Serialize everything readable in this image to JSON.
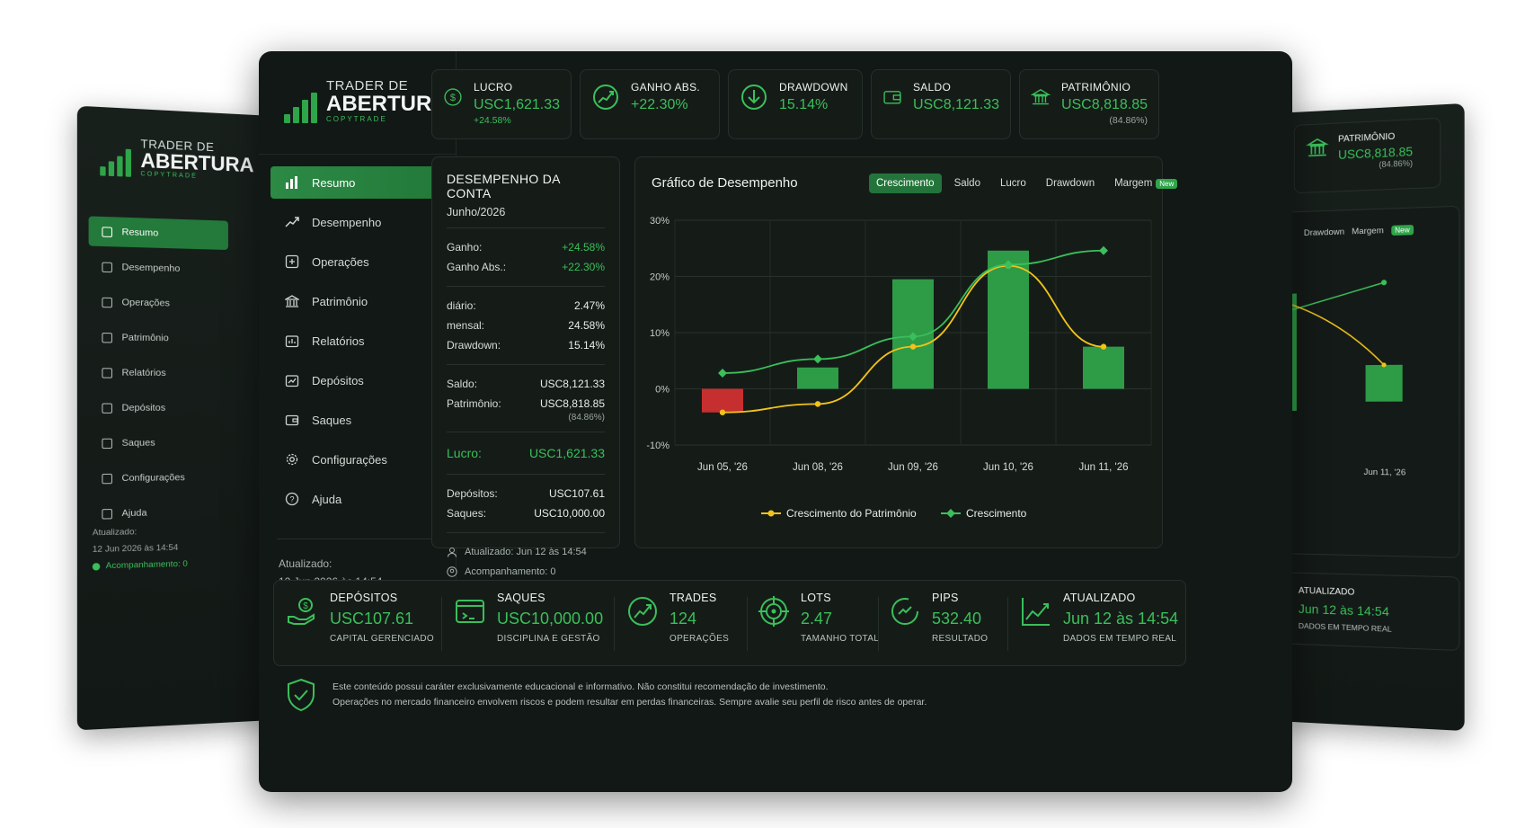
{
  "brand": {
    "line1": "TRADER DE",
    "line2": "ABERTURA",
    "line3": "COPYTRADE"
  },
  "sidebar": {
    "items": [
      {
        "label": "Resumo",
        "icon": "bar-chart-icon",
        "active": true
      },
      {
        "label": "Desempenho",
        "icon": "trend-up-icon"
      },
      {
        "label": "Operações",
        "icon": "operations-icon"
      },
      {
        "label": "Patrimônio",
        "icon": "bank-icon"
      },
      {
        "label": "Relatórios",
        "icon": "report-icon"
      },
      {
        "label": "Depósitos",
        "icon": "deposit-icon"
      },
      {
        "label": "Saques",
        "icon": "wallet-icon"
      },
      {
        "label": "Configurações",
        "icon": "gear-icon"
      },
      {
        "label": "Ajuda",
        "icon": "help-icon"
      }
    ],
    "updated_label": "Atualizado:",
    "updated_value": "12 Jun 2026 às 14:54",
    "follow": "Acompanhamento: 0"
  },
  "stats": [
    {
      "label": "LUCRO",
      "value": "USC1,621.33",
      "sub": "+24.58%",
      "icon": "dollar-icon"
    },
    {
      "label": "GANHO ABS.",
      "value": "+22.30%",
      "sub": "",
      "icon": "gain-chart-icon"
    },
    {
      "label": "DRAWDOWN",
      "value": "15.14%",
      "sub": "",
      "icon": "down-arrow-icon"
    },
    {
      "label": "SALDO",
      "value": "USC8,121.33",
      "sub": "",
      "icon": "wallet-icon"
    },
    {
      "label": "PATRIMÔNIO",
      "value": "USC8,818.85",
      "sub": "(84.86%)",
      "icon": "bank-icon"
    }
  ],
  "account": {
    "title": "DESEMPENHO DA CONTA",
    "period": "Junho/2026",
    "gain_label": "Ganho:",
    "gain": "+24.58%",
    "gain_abs_label": "Ganho Abs.:",
    "gain_abs": "+22.30%",
    "daily_label": "diário:",
    "daily": "2.47%",
    "monthly_label": "mensal:",
    "monthly": "24.58%",
    "drawdown_label": "Drawdown:",
    "drawdown": "15.14%",
    "balance_label": "Saldo:",
    "balance": "USC8,121.33",
    "equity_label": "Patrimônio:",
    "equity": "USC8,818.85",
    "equity_pct": "(84.86%)",
    "profit_label": "Lucro:",
    "profit": "USC1,621.33",
    "deposits_label": "Depósitos:",
    "deposits": "USC107.61",
    "withdrawals_label": "Saques:",
    "withdrawals": "USC10,000.00",
    "updated": "Atualizado: Jun 12 às 14:54",
    "follow": "Acompanhamento: 0"
  },
  "chart_panel": {
    "title": "Gráfico de Desempenho",
    "tabs": [
      "Crescimento",
      "Saldo",
      "Lucro",
      "Drawdown",
      "Margem"
    ],
    "active_tab": "Crescimento",
    "new_badge": "New"
  },
  "chart_data": {
    "type": "bar",
    "categories": [
      "Jun 05, '26",
      "Jun 08, '26",
      "Jun 09, '26",
      "Jun 10, '26",
      "Jun 11, '26"
    ],
    "ylim": [
      -10,
      30
    ],
    "yticks": [
      "30%",
      "20%",
      "10%",
      "0%",
      "-10%"
    ],
    "bars": [
      -4.2,
      3.8,
      19.5,
      24.6,
      7.5
    ],
    "series": [
      {
        "name": "Crescimento do Patrimônio",
        "type": "line",
        "color": "#f2c318",
        "values": [
          -4.2,
          -2.7,
          7.5,
          21.9,
          7.5
        ]
      },
      {
        "name": "Crescimento",
        "type": "line",
        "color": "#3bbf5a",
        "values": [
          2.8,
          5.3,
          9.3,
          22.1,
          24.6
        ]
      }
    ],
    "grid": true,
    "legend": "bottom",
    "colors": {
      "positive": "#2e9b47",
      "negative": "#c62f2f"
    }
  },
  "bottom": [
    {
      "label": "DEPÓSITOS",
      "value": "USC107.61",
      "sub": "CAPITAL GERENCIADO",
      "icon": "hand-money-icon"
    },
    {
      "label": "SAQUES",
      "value": "USC10,000.00",
      "sub": "DISCIPLINA E GESTÃO",
      "icon": "card-withdraw-icon"
    },
    {
      "label": "TRADES",
      "value": "124",
      "sub": "OPERAÇÕES",
      "icon": "trades-icon"
    },
    {
      "label": "LOTS",
      "value": "2.47",
      "sub": "TAMANHO TOTAL",
      "icon": "target-icon"
    },
    {
      "label": "PIPS",
      "value": "532.40",
      "sub": "RESULTADO",
      "icon": "pips-icon"
    },
    {
      "label": "ATUALIZADO",
      "value": "Jun 12 às 14:54",
      "sub": "DADOS EM TEMPO REAL",
      "icon": "line-chart-icon"
    }
  ],
  "disclaimer": {
    "line1": "Este conteúdo possui caráter exclusivamente educacional e informativo. Não constitui recomendação de investimento.",
    "line2": "Operações no mercado financeiro envolvem riscos e podem resultar em perdas financeiras. Sempre avalie seu perfil de risco antes de operar."
  },
  "bg_right": {
    "tabs": [
      "Drawdown",
      "Margem"
    ],
    "xlabel": "Jun 11, '26",
    "updated_label": "ATUALIZADO",
    "updated_value": "Jun 12 às 14:54",
    "updated_sub": "DADOS EM TEMPO REAL"
  }
}
